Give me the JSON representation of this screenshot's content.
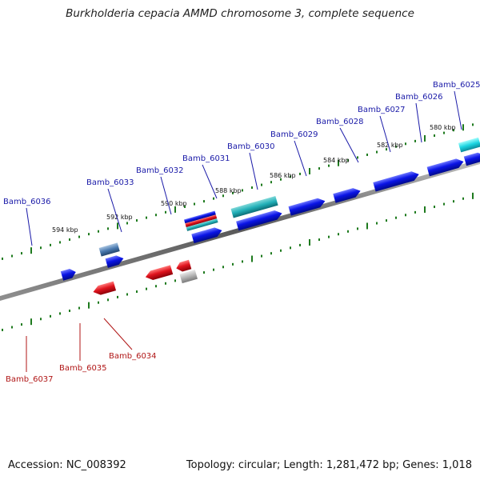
{
  "title": "Burkholderia cepacia AMMD chromosome 3, complete sequence",
  "footer": {
    "accession": "Accession: NC_008392",
    "topology": "Topology: circular; Length: 1,281,472 bp; Genes: 1,018"
  },
  "colors": {
    "forward_gene": "#0a14e6",
    "reverse_gene": "#e0141e",
    "backbone": "#707070",
    "tick": "#1e7a1e",
    "forward_label": "#1a1aa8",
    "reverse_label": "#b01616"
  },
  "ticks": [
    "594 kbp",
    "592 kbp",
    "590 kbp",
    "588 kbp",
    "586 kbp",
    "584 kbp",
    "582 kbp",
    "580 kbp"
  ],
  "genes_top": [
    "Bamb_6036",
    "Bamb_6033",
    "Bamb_6032",
    "Bamb_6031",
    "Bamb_6030",
    "Bamb_6029",
    "Bamb_6028",
    "Bamb_6027",
    "Bamb_6026",
    "Bamb_6025"
  ],
  "genes_bottom": [
    "Bamb_6037",
    "Bamb_6035",
    "Bamb_6034"
  ]
}
